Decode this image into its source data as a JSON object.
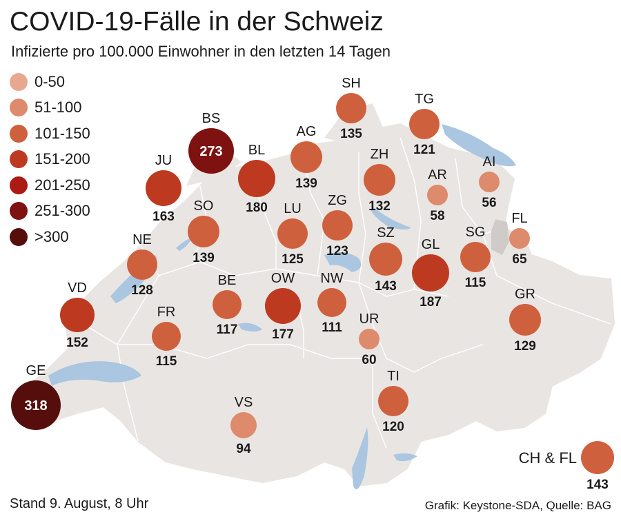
{
  "title": "COVID-19-Fälle in der Schweiz",
  "subtitle": "Infizierte pro 100.000 Einwohner in den letzten 14 Tagen",
  "legend": [
    {
      "label": "0-50",
      "color": "#e8a88f"
    },
    {
      "label": "51-100",
      "color": "#de8a6c"
    },
    {
      "label": "101-150",
      "color": "#cf603d"
    },
    {
      "label": "151-200",
      "color": "#bd3a21"
    },
    {
      "label": "201-250",
      "color": "#ac1a14"
    },
    {
      "label": "251-300",
      "color": "#7e1210"
    },
    {
      "label": ">300",
      "color": "#560e0c"
    }
  ],
  "cantons": [
    {
      "code": "BS",
      "value": 273,
      "color": "#7e1210"
    },
    {
      "code": "SH",
      "value": 135,
      "color": "#cf603d"
    },
    {
      "code": "TG",
      "value": 121,
      "color": "#cf603d"
    },
    {
      "code": "AG",
      "value": 139,
      "color": "#cf603d"
    },
    {
      "code": "BL",
      "value": 180,
      "color": "#bd3a21"
    },
    {
      "code": "JU",
      "value": 163,
      "color": "#bd3a21"
    },
    {
      "code": "ZH",
      "value": 132,
      "color": "#cf603d"
    },
    {
      "code": "AR",
      "value": 58,
      "color": "#de8a6c"
    },
    {
      "code": "AI",
      "value": 56,
      "color": "#de8a6c"
    },
    {
      "code": "SO",
      "value": 139,
      "color": "#cf603d"
    },
    {
      "code": "LU",
      "value": 125,
      "color": "#cf603d"
    },
    {
      "code": "ZG",
      "value": 123,
      "color": "#cf603d"
    },
    {
      "code": "FL",
      "value": 65,
      "color": "#de8a6c"
    },
    {
      "code": "NE",
      "value": 128,
      "color": "#cf603d"
    },
    {
      "code": "SZ",
      "value": 143,
      "color": "#cf603d"
    },
    {
      "code": "GL",
      "value": 187,
      "color": "#bd3a21"
    },
    {
      "code": "SG",
      "value": 115,
      "color": "#cf603d"
    },
    {
      "code": "VD",
      "value": 152,
      "color": "#bd3a21"
    },
    {
      "code": "BE",
      "value": 117,
      "color": "#cf603d"
    },
    {
      "code": "OW",
      "value": 177,
      "color": "#bd3a21"
    },
    {
      "code": "NW",
      "value": 111,
      "color": "#cf603d"
    },
    {
      "code": "GR",
      "value": 129,
      "color": "#cf603d"
    },
    {
      "code": "FR",
      "value": 115,
      "color": "#cf603d"
    },
    {
      "code": "UR",
      "value": 60,
      "color": "#de8a6c"
    },
    {
      "code": "GE",
      "value": 318,
      "color": "#560e0c"
    },
    {
      "code": "TI",
      "value": 120,
      "color": "#cf603d"
    },
    {
      "code": "VS",
      "value": 94,
      "color": "#de8a6c"
    }
  ],
  "total": {
    "label": "CH & FL",
    "value": 143,
    "color": "#cf603d"
  },
  "footer": {
    "date": "Stand 9. August, 8 Uhr",
    "source": "Grafik: Keystone-SDA, Quelle: BAG"
  },
  "colors": {
    "land": "#e9e5e3",
    "border": "#ffffff",
    "lake": "#aac6e0",
    "liechtenstein": "#d0cbc9"
  }
}
